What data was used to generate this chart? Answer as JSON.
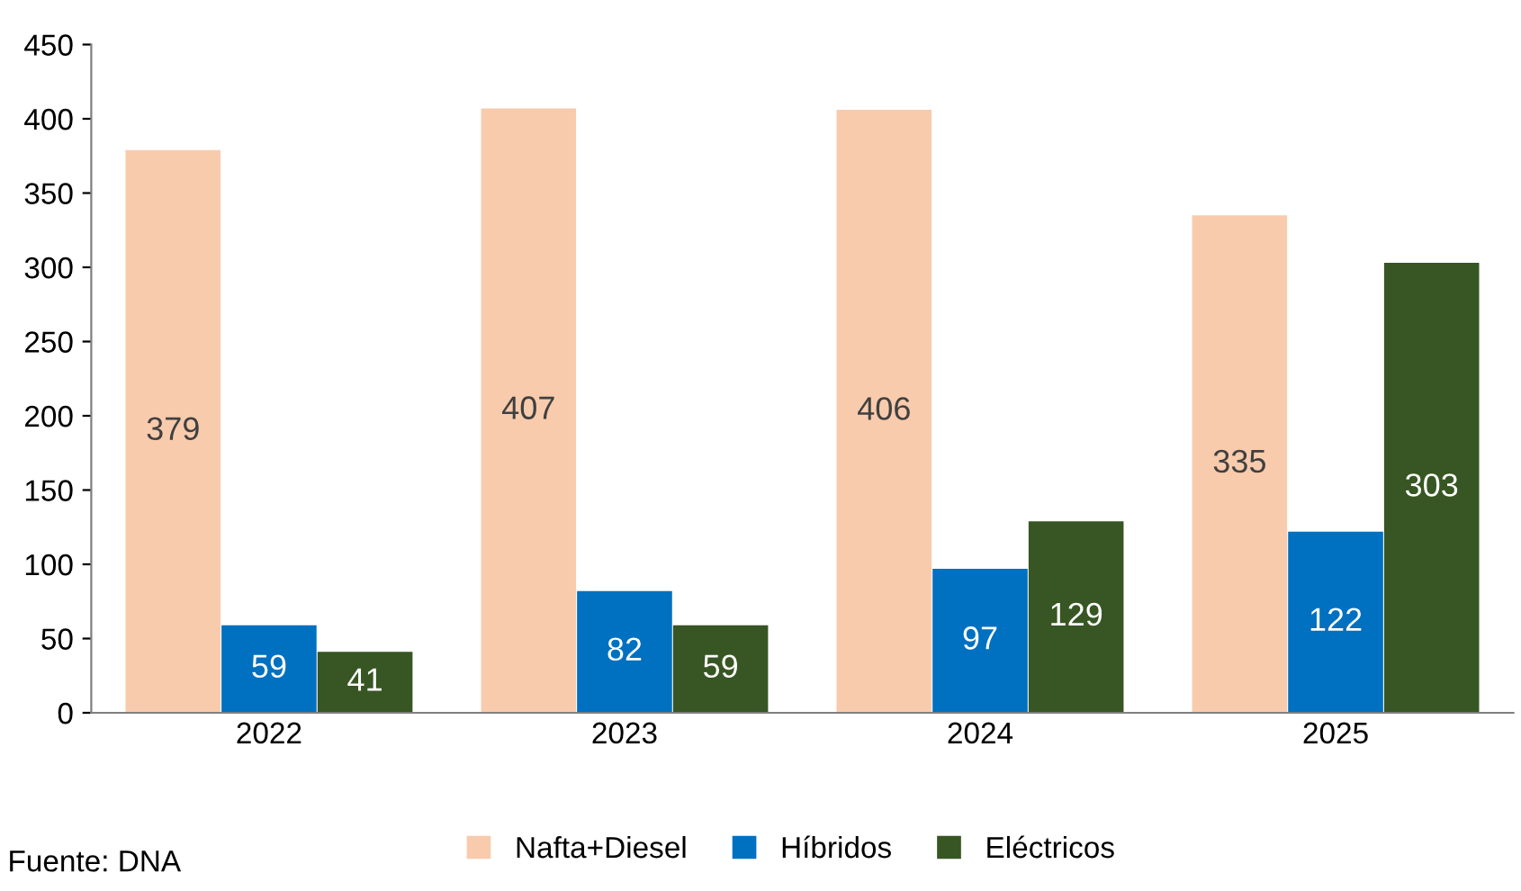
{
  "chart_data": {
    "type": "bar",
    "categories": [
      "2022",
      "2023",
      "2024",
      "2025"
    ],
    "series": [
      {
        "name": "Nafta+Diesel",
        "color": "#f8cbad",
        "values": [
          379,
          407,
          406,
          335
        ]
      },
      {
        "name": "Híbridos",
        "color": "#0070c0",
        "values": [
          59,
          82,
          97,
          122
        ]
      },
      {
        "name": "Eléctricos",
        "color": "#375623",
        "values": [
          41,
          59,
          129,
          303
        ]
      }
    ],
    "ylim": [
      0,
      450
    ],
    "yticks": [
      0,
      50,
      100,
      150,
      200,
      250,
      300,
      350,
      400,
      450
    ],
    "data_labels": true,
    "grid": false,
    "legend": "bottom",
    "annotations": [
      "Fuente: DNA"
    ]
  }
}
